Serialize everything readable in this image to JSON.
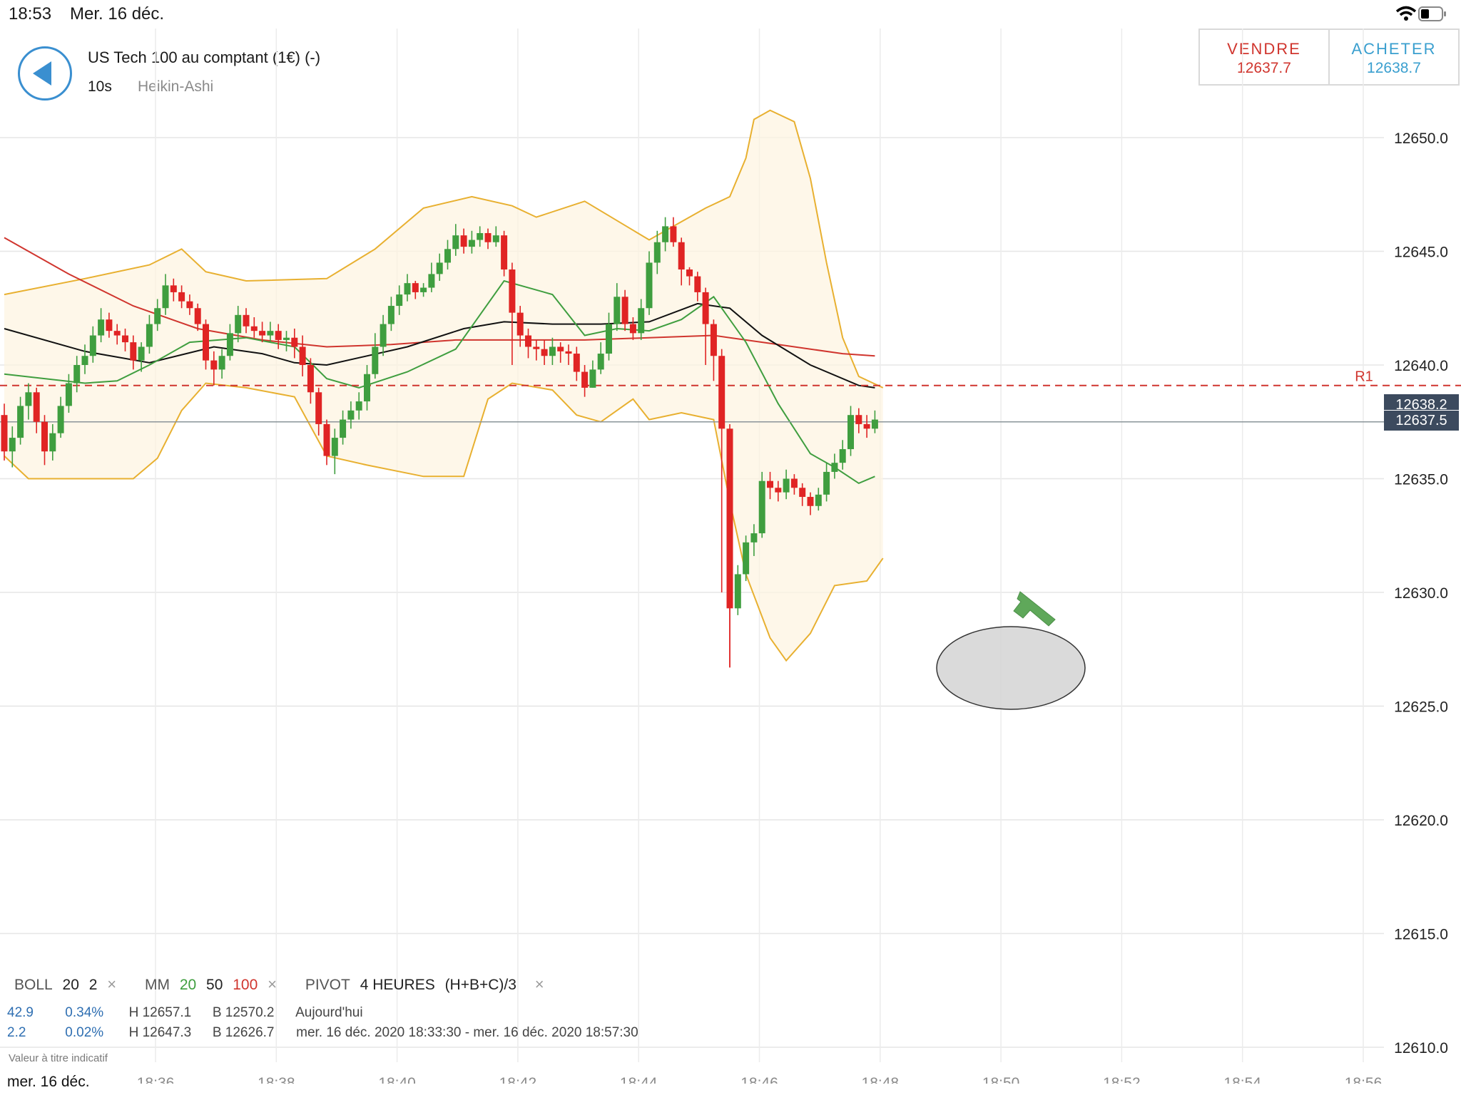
{
  "status": {
    "time": "18:53",
    "date": "Mer. 16 déc."
  },
  "header": {
    "instrument": "US Tech 100 au comptant (1€) (-)",
    "timeframe": "10s",
    "chart_type": "Heikin-Ashi"
  },
  "trade": {
    "sell_label": "VENDRE",
    "sell_price": "12637.7",
    "buy_label": "ACHETER",
    "buy_price": "12638.7"
  },
  "price_tags": {
    "upper": "12638.2",
    "current": "12637.5"
  },
  "pivot_label": "R1",
  "legend": {
    "boll": "BOLL",
    "boll_period": "20",
    "boll_dev": "2",
    "mm": "MM",
    "mm_1": "20",
    "mm_2": "50",
    "mm_3": "100",
    "pivot": "PIVOT",
    "pivot_period": "4 HEURES",
    "pivot_formula": "(H+B+C)/3",
    "close": "×"
  },
  "stats": {
    "row1": {
      "a": "42.9",
      "b": "0.34%",
      "h": "H 12657.1",
      "l": "B 12570.2",
      "period": "Aujourd'hui"
    },
    "row2": {
      "a": "2.2",
      "b": "0.02%",
      "h": "H 12647.3",
      "l": "B 12626.7",
      "period": "mer. 16 déc. 2020 18:33:30 - mer. 16 déc. 2020 18:57:30"
    }
  },
  "disclaimer": "Valeur à titre indicatif",
  "bottom_date": "mer. 16 déc.",
  "colors": {
    "up": "#3f9e3f",
    "down": "#e02424",
    "boll": "#e8b030",
    "ma20": "#3f9e3f",
    "ma50": "#111111",
    "ma100": "#d0352e",
    "pivot": "#d0352e"
  },
  "chart_data": {
    "type": "candlestick",
    "y_axis": {
      "ticks": [
        "12650.0",
        "12645.0",
        "12640.0",
        "12635.0",
        "12630.0",
        "12625.0",
        "12620.0",
        "12615.0",
        "12610.0"
      ]
    },
    "x_axis": {
      "ticks": [
        "18:36",
        "18:38",
        "18:40",
        "18:42",
        "18:44",
        "18:46",
        "18:48",
        "18:50",
        "18:52",
        "18:54",
        "18:56"
      ]
    },
    "pivot_R1": 12639.1,
    "current_price": 12637.5,
    "candles": [
      [
        12637.8,
        12636.2,
        12638.3,
        12635.8
      ],
      [
        12636.2,
        12636.8,
        12637.3,
        12635.5
      ],
      [
        12636.8,
        12638.2,
        12638.6,
        12636.5
      ],
      [
        12638.2,
        12638.8,
        12639.2,
        12637.6
      ],
      [
        12638.8,
        12637.5,
        12639.0,
        12637.0
      ],
      [
        12637.5,
        12636.2,
        12637.8,
        12635.6
      ],
      [
        12636.2,
        12637.0,
        12637.4,
        12635.8
      ],
      [
        12637.0,
        12638.2,
        12638.6,
        12636.8
      ],
      [
        12638.2,
        12639.2,
        12639.6,
        12637.9
      ],
      [
        12639.2,
        12640.0,
        12640.4,
        12638.8
      ],
      [
        12640.0,
        12640.4,
        12640.9,
        12639.6
      ],
      [
        12640.4,
        12641.3,
        12641.7,
        12640.1
      ],
      [
        12641.3,
        12642.0,
        12642.5,
        12641.0
      ],
      [
        12642.0,
        12641.5,
        12642.3,
        12641.2
      ],
      [
        12641.5,
        12641.3,
        12641.8,
        12640.9
      ],
      [
        12641.3,
        12641.0,
        12641.6,
        12640.6
      ],
      [
        12641.0,
        12640.2,
        12641.3,
        12639.8
      ],
      [
        12640.2,
        12640.8,
        12641.0,
        12639.7
      ],
      [
        12640.8,
        12641.8,
        12642.2,
        12640.5
      ],
      [
        12641.8,
        12642.5,
        12642.9,
        12641.5
      ],
      [
        12642.5,
        12643.5,
        12644.0,
        12642.2
      ],
      [
        12643.5,
        12643.2,
        12643.8,
        12642.8
      ],
      [
        12643.2,
        12642.8,
        12643.5,
        12642.5
      ],
      [
        12642.8,
        12642.5,
        12643.1,
        12642.2
      ],
      [
        12642.5,
        12641.8,
        12642.7,
        12641.5
      ],
      [
        12641.8,
        12640.2,
        12642.0,
        12639.8
      ],
      [
        12640.2,
        12639.8,
        12640.6,
        12639.1
      ],
      [
        12639.8,
        12640.4,
        12640.7,
        12639.4
      ],
      [
        12640.4,
        12641.4,
        12641.8,
        12640.2
      ],
      [
        12641.4,
        12642.2,
        12642.6,
        12641.0
      ],
      [
        12642.2,
        12641.7,
        12642.5,
        12641.4
      ],
      [
        12641.7,
        12641.5,
        12642.1,
        12641.2
      ],
      [
        12641.5,
        12641.3,
        12641.9,
        12641.0
      ],
      [
        12641.3,
        12641.5,
        12641.9,
        12641.0
      ],
      [
        12641.5,
        12641.1,
        12641.8,
        12640.7
      ],
      [
        12641.1,
        12641.2,
        12641.5,
        12640.6
      ],
      [
        12641.2,
        12640.8,
        12641.6,
        12640.3
      ],
      [
        12640.8,
        12640.0,
        12641.3,
        12639.5
      ],
      [
        12640.0,
        12638.8,
        12640.3,
        12638.3
      ],
      [
        12638.8,
        12637.4,
        12639.0,
        12636.9
      ],
      [
        12637.4,
        12636.0,
        12637.6,
        12635.6
      ],
      [
        12636.0,
        12636.8,
        12637.2,
        12635.2
      ],
      [
        12636.8,
        12637.6,
        12638.0,
        12636.5
      ],
      [
        12637.6,
        12638.0,
        12638.4,
        12637.2
      ],
      [
        12638.0,
        12638.4,
        12638.8,
        12637.6
      ],
      [
        12638.4,
        12639.6,
        12640.0,
        12638.0
      ],
      [
        12639.6,
        12640.8,
        12641.4,
        12639.4
      ],
      [
        12640.8,
        12641.8,
        12642.2,
        12640.4
      ],
      [
        12641.8,
        12642.6,
        12643.0,
        12641.5
      ],
      [
        12642.6,
        12643.1,
        12643.5,
        12642.2
      ],
      [
        12643.1,
        12643.6,
        12644.0,
        12642.8
      ],
      [
        12643.6,
        12643.2,
        12643.7,
        12642.9
      ],
      [
        12643.2,
        12643.4,
        12643.6,
        12643.0
      ],
      [
        12643.4,
        12644.0,
        12644.5,
        12643.2
      ],
      [
        12644.0,
        12644.5,
        12644.9,
        12643.7
      ],
      [
        12644.5,
        12645.1,
        12645.5,
        12644.2
      ],
      [
        12645.1,
        12645.7,
        12646.2,
        12644.8
      ],
      [
        12645.7,
        12645.2,
        12646.0,
        12644.9
      ],
      [
        12645.2,
        12645.5,
        12645.9,
        12644.9
      ],
      [
        12645.5,
        12645.8,
        12646.1,
        12645.2
      ],
      [
        12645.8,
        12645.4,
        12646.0,
        12645.1
      ],
      [
        12645.4,
        12645.7,
        12646.1,
        12645.2
      ],
      [
        12645.7,
        12644.2,
        12645.9,
        12643.9
      ],
      [
        12644.2,
        12642.3,
        12644.5,
        12640.0
      ],
      [
        12642.3,
        12641.3,
        12642.6,
        12640.8
      ],
      [
        12641.3,
        12640.8,
        12641.6,
        12640.3
      ],
      [
        12640.8,
        12640.7,
        12641.1,
        12640.2
      ],
      [
        12640.7,
        12640.4,
        12641.1,
        12640.0
      ],
      [
        12640.4,
        12640.8,
        12641.2,
        12640.0
      ],
      [
        12640.8,
        12640.6,
        12641.0,
        12640.1
      ],
      [
        12640.6,
        12640.5,
        12640.9,
        12640.0
      ],
      [
        12640.5,
        12639.7,
        12640.8,
        12639.3
      ],
      [
        12639.7,
        12639.0,
        12640.0,
        12638.6
      ],
      [
        12639.0,
        12639.8,
        12640.2,
        12639.0
      ],
      [
        12639.8,
        12640.5,
        12641.0,
        12639.6
      ],
      [
        12640.5,
        12641.8,
        12642.3,
        12640.2
      ],
      [
        12641.8,
        12643.0,
        12643.6,
        12641.5
      ],
      [
        12643.0,
        12641.8,
        12643.3,
        12641.5
      ],
      [
        12641.8,
        12641.4,
        12642.1,
        12641.1
      ],
      [
        12641.4,
        12642.5,
        12642.9,
        12641.1
      ],
      [
        12642.5,
        12644.5,
        12645.0,
        12642.2
      ],
      [
        12644.5,
        12645.4,
        12645.9,
        12644.0
      ],
      [
        12645.4,
        12646.1,
        12646.5,
        12645.0
      ],
      [
        12646.1,
        12645.4,
        12646.5,
        12645.2
      ],
      [
        12645.4,
        12644.2,
        12645.6,
        12643.5
      ],
      [
        12644.2,
        12643.9,
        12644.3,
        12643.5
      ],
      [
        12643.9,
        12643.2,
        12644.1,
        12642.8
      ],
      [
        12643.2,
        12641.8,
        12643.4,
        12640.0
      ],
      [
        12641.8,
        12640.4,
        12642.0,
        12639.3
      ],
      [
        12640.4,
        12637.2,
        12640.7,
        12630.0
      ],
      [
        12637.2,
        12629.3,
        12637.4,
        12626.7
      ],
      [
        12629.3,
        12630.8,
        12631.2,
        12629.0
      ],
      [
        12630.8,
        12632.2,
        12632.5,
        12630.5
      ],
      [
        12632.2,
        12632.6,
        12633.0,
        12631.6
      ],
      [
        12632.6,
        12634.9,
        12635.3,
        12632.4
      ],
      [
        12634.9,
        12634.6,
        12635.3,
        12634.1
      ],
      [
        12634.6,
        12634.4,
        12634.9,
        12634.0
      ],
      [
        12634.4,
        12635.0,
        12635.4,
        12634.1
      ],
      [
        12635.0,
        12634.6,
        12635.2,
        12634.3
      ],
      [
        12634.6,
        12634.2,
        12634.8,
        12633.8
      ],
      [
        12634.2,
        12633.8,
        12634.4,
        12633.4
      ],
      [
        12633.8,
        12634.3,
        12634.6,
        12633.6
      ],
      [
        12634.3,
        12635.3,
        12635.7,
        12634.0
      ],
      [
        12635.3,
        12635.7,
        12636.1,
        12635.0
      ],
      [
        12635.7,
        12636.3,
        12636.7,
        12635.4
      ],
      [
        12636.3,
        12637.8,
        12638.2,
        12636.0
      ],
      [
        12637.8,
        12637.4,
        12638.1,
        12637.0
      ],
      [
        12637.4,
        12637.2,
        12637.8,
        12636.8
      ],
      [
        12637.2,
        12637.6,
        12638.0,
        12637.0
      ]
    ],
    "boll_upper": [
      [
        0,
        12643.1
      ],
      [
        10,
        12643.8
      ],
      [
        18,
        12644.4
      ],
      [
        22,
        12645.1
      ],
      [
        25,
        12644.1
      ],
      [
        30,
        12643.7
      ],
      [
        40,
        12643.8
      ],
      [
        46,
        12645.1
      ],
      [
        52,
        12646.9
      ],
      [
        58,
        12647.4
      ],
      [
        63,
        12647.0
      ],
      [
        66,
        12646.5
      ],
      [
        72,
        12647.2
      ],
      [
        80,
        12645.5
      ],
      [
        84,
        12646.3
      ],
      [
        87,
        12646.9
      ],
      [
        90,
        12647.4
      ],
      [
        92,
        12649.1
      ],
      [
        93,
        12650.8
      ],
      [
        95,
        12651.2
      ],
      [
        98,
        12650.7
      ],
      [
        100,
        12648.2
      ],
      [
        102,
        12644.5
      ],
      [
        104,
        12641.2
      ],
      [
        106,
        12639.5
      ],
      [
        109,
        12639.0
      ]
    ],
    "boll_lower": [
      [
        0,
        12636.0
      ],
      [
        3,
        12635.0
      ],
      [
        10,
        12635.0
      ],
      [
        16,
        12635.0
      ],
      [
        19,
        12635.9
      ],
      [
        22,
        12638.0
      ],
      [
        25,
        12639.2
      ],
      [
        30,
        12639.0
      ],
      [
        36,
        12638.6
      ],
      [
        40,
        12636.0
      ],
      [
        45,
        12635.6
      ],
      [
        52,
        12635.1
      ],
      [
        57,
        12635.1
      ],
      [
        60,
        12638.5
      ],
      [
        63,
        12639.2
      ],
      [
        68,
        12638.9
      ],
      [
        71,
        12637.8
      ],
      [
        74,
        12637.5
      ],
      [
        78,
        12638.5
      ],
      [
        80,
        12637.6
      ],
      [
        84,
        12637.9
      ],
      [
        88,
        12637.6
      ],
      [
        90,
        12634.0
      ],
      [
        92,
        12630.8
      ],
      [
        95,
        12628.0
      ],
      [
        97,
        12627.0
      ],
      [
        100,
        12628.2
      ],
      [
        103,
        12630.3
      ],
      [
        107,
        12630.5
      ],
      [
        109,
        12631.5
      ]
    ],
    "ma20": [
      [
        0,
        12639.6
      ],
      [
        10,
        12639.2
      ],
      [
        14,
        12639.3
      ],
      [
        18,
        12640.0
      ],
      [
        23,
        12641.0
      ],
      [
        30,
        12641.2
      ],
      [
        36,
        12640.8
      ],
      [
        40,
        12639.4
      ],
      [
        44,
        12639.0
      ],
      [
        50,
        12639.7
      ],
      [
        56,
        12640.7
      ],
      [
        62,
        12643.7
      ],
      [
        68,
        12643.1
      ],
      [
        72,
        12641.3
      ],
      [
        76,
        12641.6
      ],
      [
        80,
        12641.5
      ],
      [
        84,
        12642.0
      ],
      [
        88,
        12643.0
      ],
      [
        92,
        12641.0
      ],
      [
        96,
        12638.3
      ],
      [
        100,
        12636.1
      ],
      [
        103,
        12635.5
      ],
      [
        106,
        12634.8
      ],
      [
        108,
        12635.1
      ]
    ],
    "ma50": [
      [
        0,
        12641.6
      ],
      [
        10,
        12640.6
      ],
      [
        18,
        12640.1
      ],
      [
        26,
        12640.8
      ],
      [
        32,
        12640.5
      ],
      [
        36,
        12640.1
      ],
      [
        40,
        12640.0
      ],
      [
        50,
        12640.8
      ],
      [
        57,
        12641.6
      ],
      [
        62,
        12641.9
      ],
      [
        68,
        12641.8
      ],
      [
        74,
        12641.8
      ],
      [
        80,
        12641.9
      ],
      [
        86,
        12642.7
      ],
      [
        90,
        12642.5
      ],
      [
        94,
        12641.3
      ],
      [
        100,
        12640.0
      ],
      [
        106,
        12639.1
      ],
      [
        108,
        12639.0
      ]
    ],
    "ma100": [
      [
        0,
        12645.6
      ],
      [
        8,
        12644.0
      ],
      [
        16,
        12642.6
      ],
      [
        24,
        12641.6
      ],
      [
        32,
        12641.1
      ],
      [
        40,
        12640.8
      ],
      [
        48,
        12640.9
      ],
      [
        56,
        12641.1
      ],
      [
        64,
        12641.1
      ],
      [
        72,
        12641.1
      ],
      [
        80,
        12641.2
      ],
      [
        88,
        12641.3
      ],
      [
        96,
        12640.9
      ],
      [
        104,
        12640.5
      ],
      [
        108,
        12640.4
      ]
    ]
  }
}
